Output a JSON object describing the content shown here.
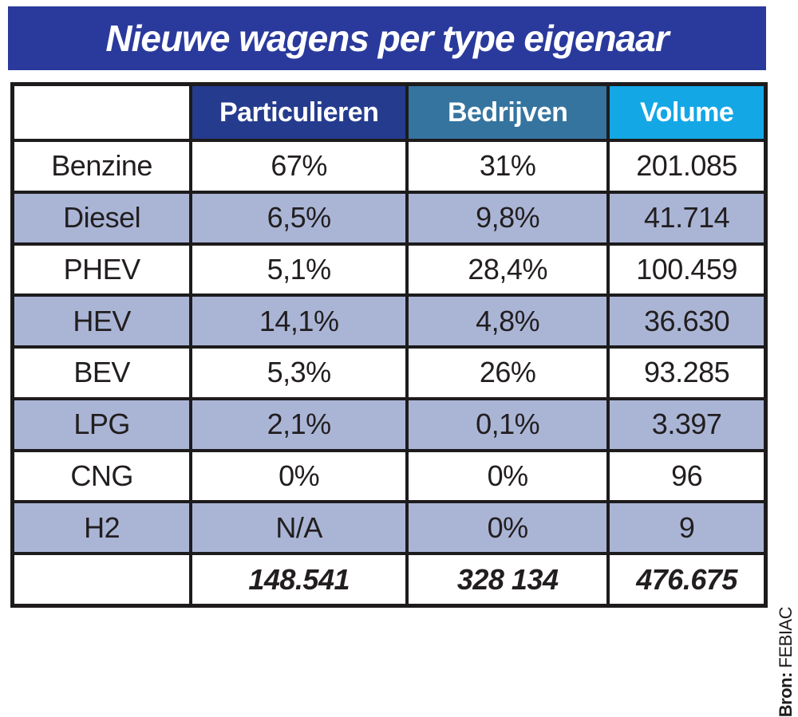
{
  "title": "Nieuwe wagens per type eigenaar",
  "source": {
    "prefix": "Bron:",
    "name": " FEBIAC"
  },
  "colors": {
    "title_bar_bg": "#2a3a9c",
    "header_particulieren_bg": "#253c8e",
    "header_bedrijven_bg": "#35749f",
    "header_volume_bg": "#14a7e5",
    "alt_row_bg": "#aab5d6",
    "border_black": "#1d1b1c",
    "text_dark": "#221e1f",
    "text_white": "#ffffff"
  },
  "chart_data": {
    "type": "table",
    "title": "Nieuwe wagens per type eigenaar",
    "columns": [
      "",
      "Particulieren",
      "Bedrijven",
      "Volume"
    ],
    "rows": [
      [
        "Benzine",
        "67%",
        "31%",
        "201.085"
      ],
      [
        "Diesel",
        "6,5%",
        "9,8%",
        "41.714"
      ],
      [
        "PHEV",
        "5,1%",
        "28,4%",
        "100.459"
      ],
      [
        "HEV",
        "14,1%",
        "4,8%",
        "36.630"
      ],
      [
        "BEV",
        "5,3%",
        "26%",
        "93.285"
      ],
      [
        "LPG",
        "2,1%",
        "0,1%",
        "3.397"
      ],
      [
        "CNG",
        "0%",
        "0%",
        "96"
      ],
      [
        "H2",
        "N/A",
        "0%",
        "9"
      ]
    ],
    "totals": [
      "",
      "148.541",
      "328 134",
      "476.675"
    ],
    "source": "Bron: FEBIAC",
    "layout": "header row colored (navy / steel blue / cyan), body rows alternate white and light periwinkle, totals row bold italic"
  }
}
